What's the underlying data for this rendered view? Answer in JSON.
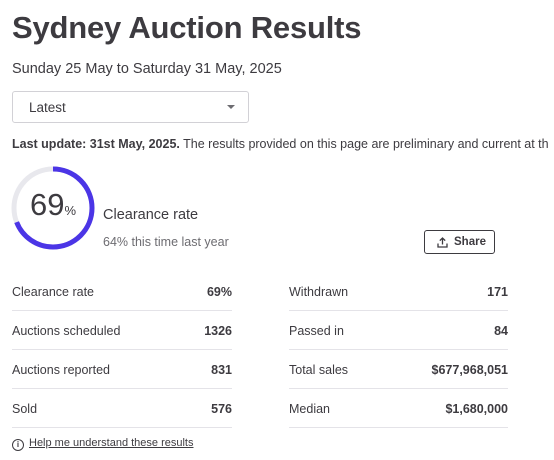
{
  "page": {
    "title": "Sydney Auction Results",
    "subtitle": "Sunday 25 May to Saturday 31 May, 2025"
  },
  "filter": {
    "selected": "Latest"
  },
  "update": {
    "label": "Last update: 31st May, 2025.",
    "text": " The results provided on this page are preliminary and current at th"
  },
  "clearance": {
    "value": "69",
    "unit": "%",
    "fraction": 0.69,
    "label": "Clearance rate",
    "comparison": "64% this time last year",
    "accent_color": "#4b35e6",
    "track_color": "#e8e8ed"
  },
  "share": {
    "label": "Share",
    "icon": "share-upload-icon"
  },
  "stats": {
    "left": [
      {
        "label": "Clearance rate",
        "value": "69%"
      },
      {
        "label": "Auctions scheduled",
        "value": "1326"
      },
      {
        "label": "Auctions reported",
        "value": "831"
      },
      {
        "label": "Sold",
        "value": "576"
      }
    ],
    "right": [
      {
        "label": "Withdrawn",
        "value": "171"
      },
      {
        "label": "Passed in",
        "value": "84"
      },
      {
        "label": "Total sales",
        "value": "$677,968,051"
      },
      {
        "label": "Median",
        "value": "$1,680,000"
      }
    ]
  },
  "help": {
    "icon": "info-icon",
    "text": "Help me understand these results"
  }
}
